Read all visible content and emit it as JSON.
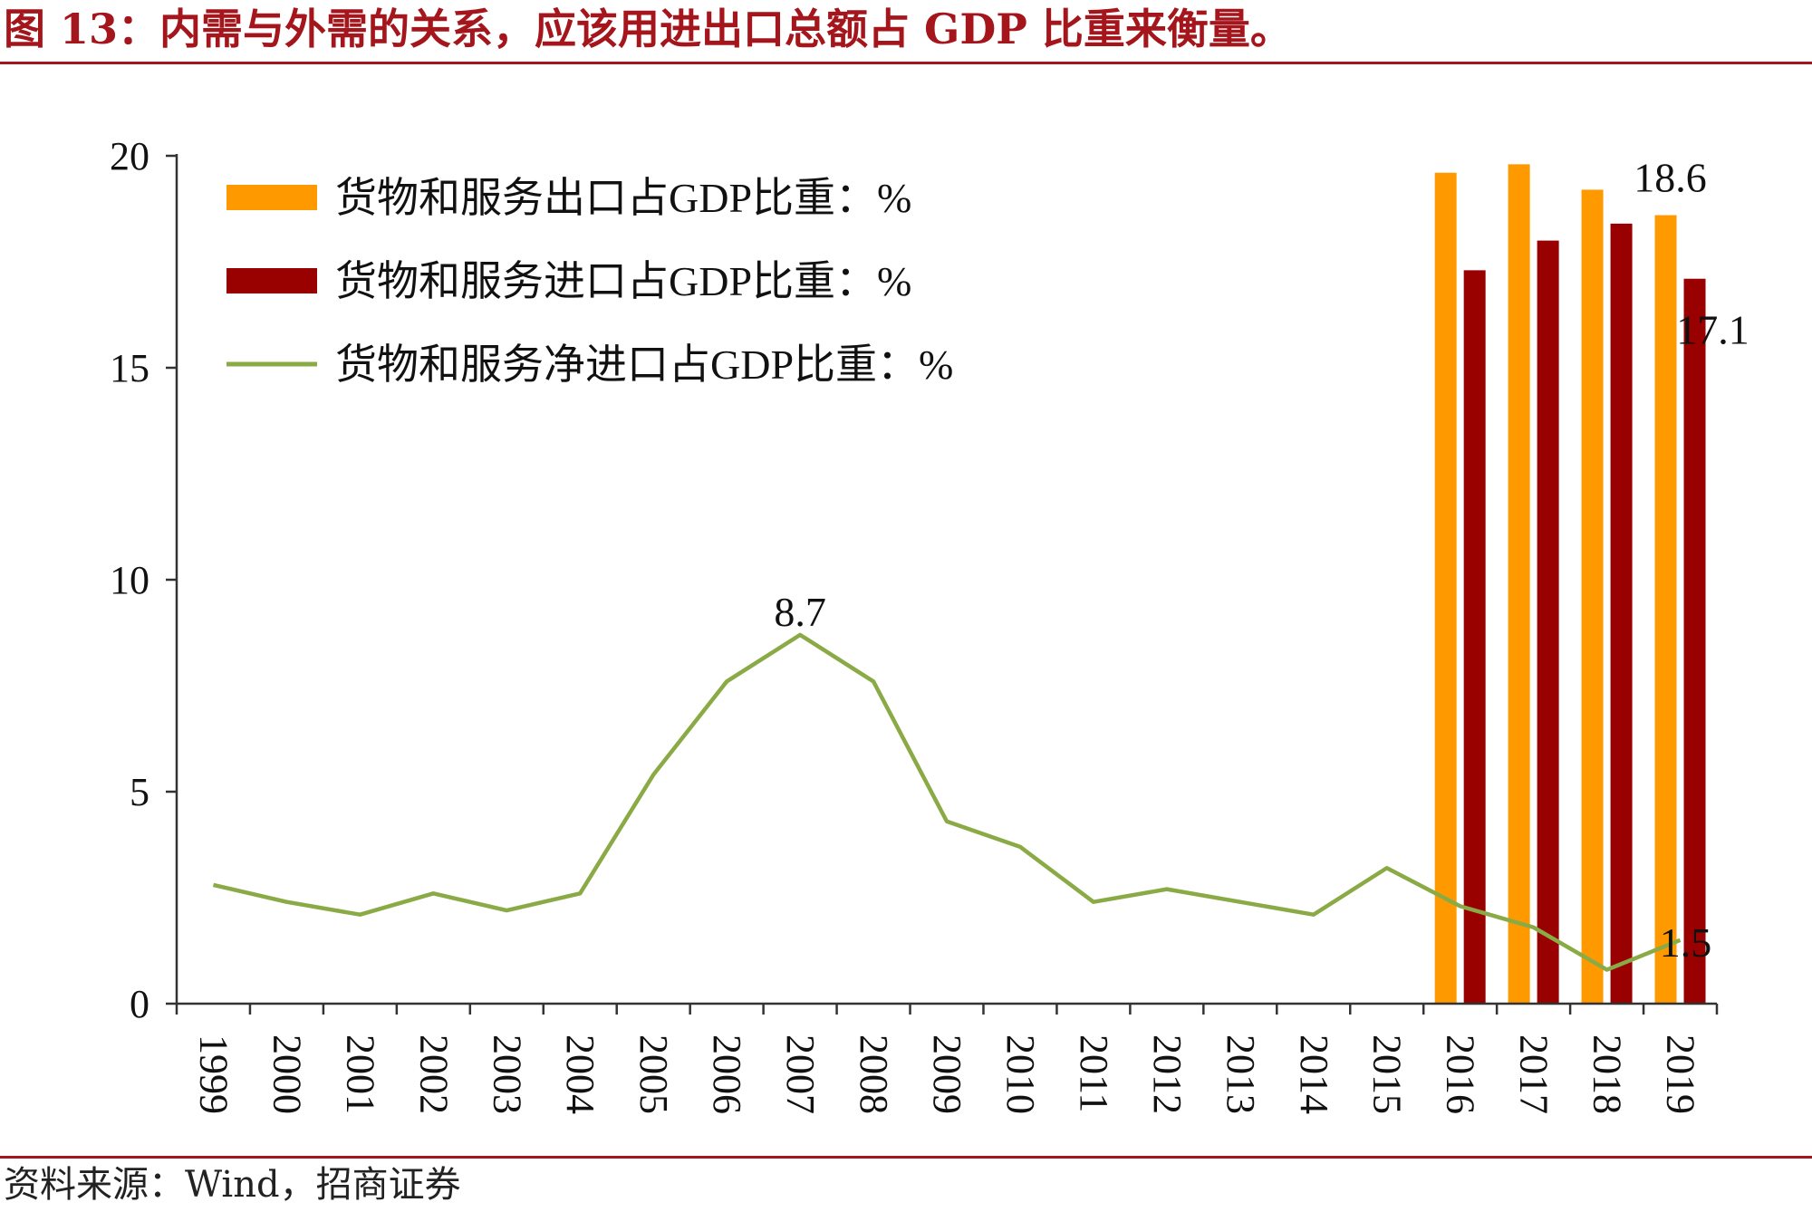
{
  "title": "图 13：内需与外需的关系，应该用进出口总额占 GDP 比重来衡量。",
  "source": "资料来源：Wind，招商证券",
  "colors": {
    "export": "#ff9900",
    "import": "#990000",
    "net": "#8aaa46",
    "accent": "#a5151c"
  },
  "chart_data": {
    "type": "bar",
    "categories": [
      "1999",
      "2000",
      "2001",
      "2002",
      "2003",
      "2004",
      "2005",
      "2006",
      "2007",
      "2008",
      "2009",
      "2010",
      "2011",
      "2012",
      "2013",
      "2014",
      "2015",
      "2016",
      "2017",
      "2018",
      "2019"
    ],
    "ylim": [
      0,
      20
    ],
    "yticks": [
      0,
      5,
      10,
      15,
      20
    ],
    "legend": "top-left",
    "series": [
      {
        "name": "货物和服务出口占GDP比重：%",
        "type": "bar",
        "values": [
          null,
          null,
          null,
          null,
          null,
          null,
          null,
          null,
          null,
          null,
          null,
          null,
          null,
          null,
          null,
          null,
          null,
          19.6,
          19.8,
          19.2,
          18.6
        ]
      },
      {
        "name": "货物和服务进口占GDP比重：%",
        "type": "bar",
        "values": [
          null,
          null,
          null,
          null,
          null,
          null,
          null,
          null,
          null,
          null,
          null,
          null,
          null,
          null,
          null,
          null,
          null,
          17.3,
          18.0,
          18.4,
          17.1
        ]
      },
      {
        "name": "货物和服务净进口占GDP比重：%",
        "type": "line",
        "values": [
          2.8,
          2.4,
          2.1,
          2.6,
          2.2,
          2.6,
          5.4,
          7.6,
          8.7,
          7.6,
          4.3,
          3.7,
          2.4,
          2.7,
          2.4,
          2.1,
          3.2,
          2.3,
          1.8,
          0.8,
          1.5
        ]
      }
    ],
    "annotations": [
      {
        "text": "18.6",
        "series": 0,
        "index": 20
      },
      {
        "text": "17.1",
        "series": 1,
        "index": 20
      },
      {
        "text": "8.7",
        "series": 2,
        "index": 8
      },
      {
        "text": "1.5",
        "series": 2,
        "index": 20
      }
    ]
  }
}
